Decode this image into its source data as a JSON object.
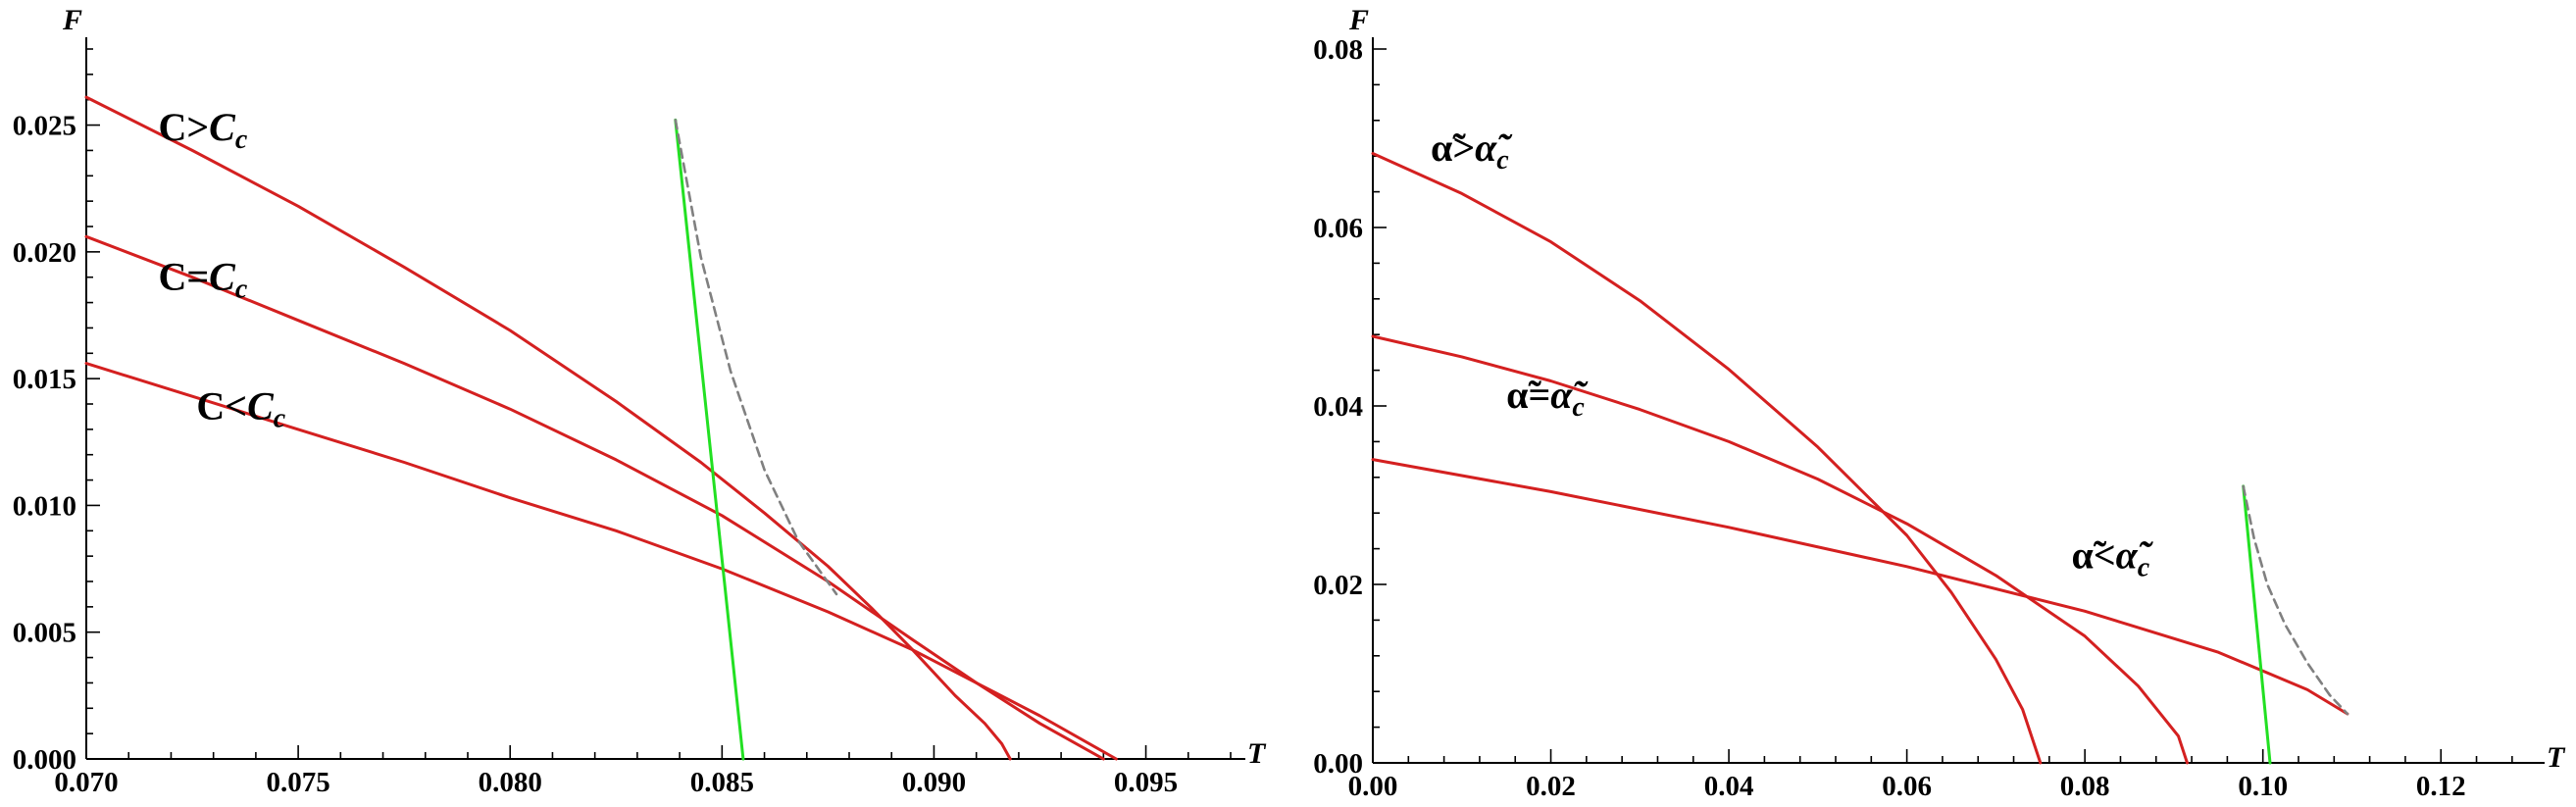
{
  "chart_data": [
    {
      "type": "line",
      "xlabel": "T",
      "ylabel": "F",
      "xlim": [
        0.07,
        0.097
      ],
      "ylim": [
        0,
        0.028
      ],
      "xticks": [
        0.07,
        0.075,
        0.08,
        0.085,
        0.09,
        0.095
      ],
      "xtick_labels": [
        "0.070",
        "0.075",
        "0.080",
        "0.085",
        "0.090",
        "0.095"
      ],
      "yticks": [
        0.0,
        0.005,
        0.01,
        0.015,
        0.02,
        0.025
      ],
      "ytick_labels": [
        "0.000",
        "0.005",
        "0.010",
        "0.015",
        "0.020",
        "0.025"
      ],
      "colors": {
        "red": "#d42020",
        "green": "#22e022",
        "gray": "#808080"
      },
      "series": [
        {
          "color": "red",
          "style": "solid",
          "x": [
            0.07,
            0.0725,
            0.075,
            0.0775,
            0.08,
            0.0825,
            0.0845,
            0.086,
            0.0875,
            0.0885,
            0.0895,
            0.0905,
            0.0912,
            0.0916,
            0.0918
          ],
          "y": [
            0.0261,
            0.024,
            0.0218,
            0.0194,
            0.0169,
            0.0141,
            0.0117,
            0.0097,
            0.0076,
            0.006,
            0.0043,
            0.0025,
            0.0014,
            0.0006,
            0.0
          ]
        },
        {
          "color": "red",
          "style": "solid",
          "x": [
            0.07,
            0.0725,
            0.075,
            0.0775,
            0.08,
            0.0825,
            0.085,
            0.0875,
            0.0895,
            0.091,
            0.0925,
            0.094
          ],
          "y": [
            0.0206,
            0.019,
            0.0173,
            0.0156,
            0.0138,
            0.0118,
            0.0096,
            0.007,
            0.0047,
            0.003,
            0.0014,
            0.0
          ]
        },
        {
          "color": "red",
          "style": "solid",
          "x": [
            0.07,
            0.0725,
            0.075,
            0.0775,
            0.08,
            0.0825,
            0.085,
            0.0875,
            0.0895,
            0.091,
            0.0925,
            0.0943
          ],
          "y": [
            0.0156,
            0.0143,
            0.013,
            0.0117,
            0.0103,
            0.009,
            0.0075,
            0.0058,
            0.0043,
            0.003,
            0.0017,
            0.0
          ]
        },
        {
          "color": "green",
          "style": "solid",
          "x": [
            0.0839,
            0.0855
          ],
          "y": [
            0.0252,
            0.0
          ]
        },
        {
          "color": "gray",
          "style": "dashed",
          "x": [
            0.0839,
            0.0845,
            0.0852,
            0.086,
            0.0868,
            0.0877
          ],
          "y": [
            0.0252,
            0.0198,
            0.0153,
            0.0114,
            0.0086,
            0.0065
          ]
        }
      ],
      "annotations": [
        {
          "text": "C>",
          "sub": "C",
          "subscript": "c",
          "x": 0.0717,
          "y": 0.0244
        },
        {
          "text": "C=",
          "sub": "C",
          "subscript": "c",
          "x": 0.0717,
          "y": 0.0185
        },
        {
          "text": "C<",
          "sub": "C",
          "subscript": "c",
          "x": 0.0726,
          "y": 0.0134
        }
      ]
    },
    {
      "type": "line",
      "xlabel": "T",
      "ylabel": "F",
      "xlim": [
        0.0,
        0.13
      ],
      "ylim": [
        0,
        0.08
      ],
      "xticks": [
        0.0,
        0.02,
        0.04,
        0.06,
        0.08,
        0.1,
        0.12
      ],
      "xtick_labels": [
        "0.00",
        "0.02",
        "0.04",
        "0.06",
        "0.08",
        "0.10",
        "0.12"
      ],
      "yticks": [
        0.0,
        0.02,
        0.04,
        0.06,
        0.08
      ],
      "ytick_labels": [
        "0.00",
        "0.02",
        "0.04",
        "0.06",
        "0.08"
      ],
      "colors": {
        "red": "#d42020",
        "green": "#22e022",
        "gray": "#808080"
      },
      "series": [
        {
          "color": "red",
          "style": "solid",
          "x": [
            0.0,
            0.01,
            0.02,
            0.03,
            0.04,
            0.05,
            0.06,
            0.065,
            0.07,
            0.073,
            0.075
          ],
          "y": [
            0.0683,
            0.0638,
            0.0584,
            0.0518,
            0.0441,
            0.0354,
            0.0255,
            0.0191,
            0.0116,
            0.006,
            0.0
          ]
        },
        {
          "color": "red",
          "style": "solid",
          "x": [
            0.0,
            0.01,
            0.02,
            0.03,
            0.04,
            0.05,
            0.06,
            0.07,
            0.08,
            0.086,
            0.0905,
            0.0915
          ],
          "y": [
            0.0478,
            0.0455,
            0.0428,
            0.0396,
            0.036,
            0.0318,
            0.0268,
            0.021,
            0.0142,
            0.0086,
            0.003,
            0.0
          ]
        },
        {
          "color": "red",
          "style": "solid",
          "x": [
            0.0,
            0.02,
            0.04,
            0.06,
            0.08,
            0.095,
            0.105,
            0.1095
          ],
          "y": [
            0.034,
            0.0304,
            0.0264,
            0.022,
            0.017,
            0.0124,
            0.0082,
            0.0055
          ]
        },
        {
          "color": "green",
          "style": "solid",
          "x": [
            0.0978,
            0.1008
          ],
          "y": [
            0.031,
            0.0
          ]
        },
        {
          "color": "gray",
          "style": "dashed",
          "x": [
            0.0978,
            0.099,
            0.1005,
            0.1025,
            0.105,
            0.1075,
            0.1095
          ],
          "y": [
            0.031,
            0.0252,
            0.02,
            0.0155,
            0.0112,
            0.0076,
            0.0055
          ]
        }
      ],
      "annotations": [
        {
          "text": "α̃>",
          "sub": "α̃",
          "subscript": "c",
          "x": 0.0065,
          "y": 0.0675
        },
        {
          "text": "α̃=",
          "sub": "α̃",
          "subscript": "c",
          "x": 0.015,
          "y": 0.0398
        },
        {
          "text": "α̃<",
          "sub": "α̃",
          "subscript": "c",
          "x": 0.0785,
          "y": 0.0218
        }
      ]
    }
  ]
}
